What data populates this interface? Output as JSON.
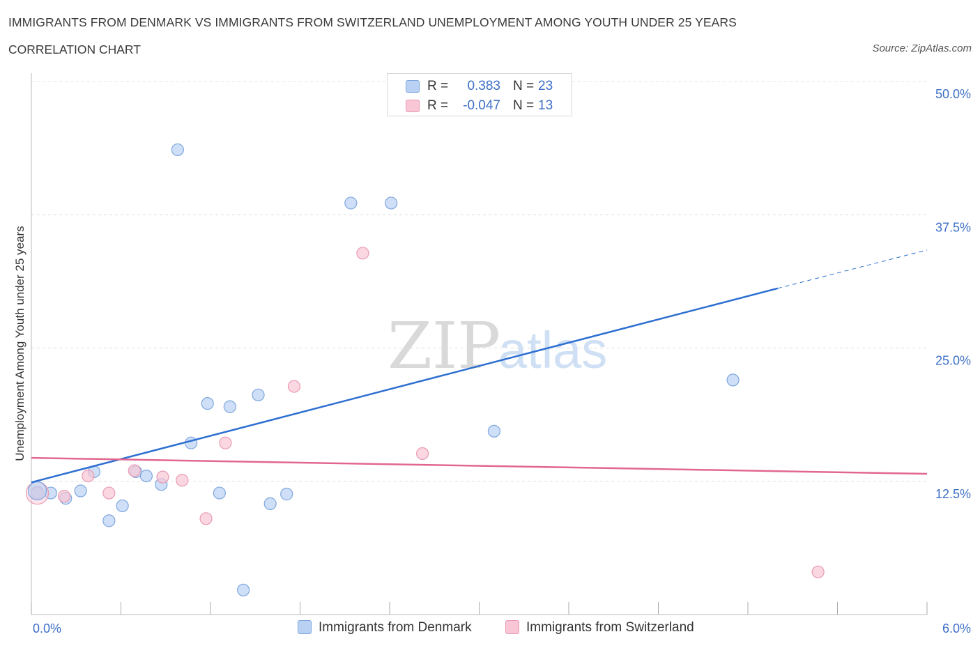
{
  "header": {
    "title": "IMMIGRANTS FROM DENMARK VS IMMIGRANTS FROM SWITZERLAND UNEMPLOYMENT AMONG YOUTH UNDER 25 YEARS",
    "subtitle": "CORRELATION CHART",
    "source": "Source: ZipAtlas.com"
  },
  "legend": {
    "r_label": "R =",
    "n_label": "N =",
    "rows": [
      {
        "r": "0.383",
        "n": "23"
      },
      {
        "r": "-0.047",
        "n": "13"
      }
    ]
  },
  "colors": {
    "denmark_fill": "#b9d2f3",
    "denmark_stroke": "#7fa7dd",
    "denmark_line": "#2d6fd1",
    "switzerland_fill": "#f8c6d4",
    "switzerland_stroke": "#e99ab3",
    "switzerland_line": "#e2678f",
    "axis_label_color": "#3d6fc7"
  },
  "watermark": {
    "zip": "ZIP",
    "atlas": "atlas"
  },
  "chart_data": {
    "type": "scatter",
    "ylabel": "Unemployment Among Youth under 25 years",
    "xlim": [
      0,
      6
    ],
    "ylim": [
      0,
      50
    ],
    "x_tick_labels": [
      "0.0%",
      "6.0%"
    ],
    "y_ticks": [
      12.5,
      25.0,
      37.5,
      50.0
    ],
    "y_tick_labels": [
      "12.5%",
      "25.0%",
      "37.5%",
      "50.0%"
    ],
    "grid": true,
    "legend_position": "top-center",
    "series": [
      {
        "name": "Immigrants from Denmark",
        "points": [
          [
            0.04,
            11.5
          ],
          [
            0.13,
            11.4
          ],
          [
            0.23,
            10.9
          ],
          [
            0.33,
            11.6
          ],
          [
            0.42,
            13.4
          ],
          [
            0.52,
            8.8
          ],
          [
            0.61,
            10.2
          ],
          [
            0.7,
            13.4
          ],
          [
            0.77,
            13.0
          ],
          [
            0.87,
            12.2
          ],
          [
            0.98,
            43.6
          ],
          [
            1.07,
            16.1
          ],
          [
            1.18,
            19.8
          ],
          [
            1.26,
            11.4
          ],
          [
            1.33,
            19.5
          ],
          [
            1.42,
            2.3
          ],
          [
            1.52,
            20.6
          ],
          [
            1.6,
            10.4
          ],
          [
            1.71,
            11.3
          ],
          [
            2.14,
            38.6
          ],
          [
            2.41,
            38.6
          ],
          [
            3.1,
            17.2
          ],
          [
            4.7,
            22.0
          ]
        ],
        "trend": {
          "x": [
            0,
            5.0
          ],
          "y": [
            12.4,
            30.6
          ]
        },
        "trend_extension": {
          "x": [
            5.0,
            6.0
          ],
          "y": [
            30.6,
            34.2
          ]
        }
      },
      {
        "name": "Immigrants from Switzerland",
        "points": [
          [
            0.04,
            11.4
          ],
          [
            0.22,
            11.1
          ],
          [
            0.38,
            13.0
          ],
          [
            0.52,
            11.4
          ],
          [
            0.69,
            13.5
          ],
          [
            0.88,
            12.9
          ],
          [
            1.01,
            12.6
          ],
          [
            1.17,
            9.0
          ],
          [
            1.3,
            16.1
          ],
          [
            1.76,
            21.4
          ],
          [
            2.22,
            33.9
          ],
          [
            2.62,
            15.1
          ],
          [
            5.27,
            4.0
          ]
        ],
        "trend": {
          "x": [
            0,
            6.0
          ],
          "y": [
            14.7,
            13.2
          ]
        }
      }
    ]
  },
  "bottom_legend": [
    {
      "label": "Immigrants from Denmark"
    },
    {
      "label": "Immigrants from Switzerland"
    }
  ]
}
